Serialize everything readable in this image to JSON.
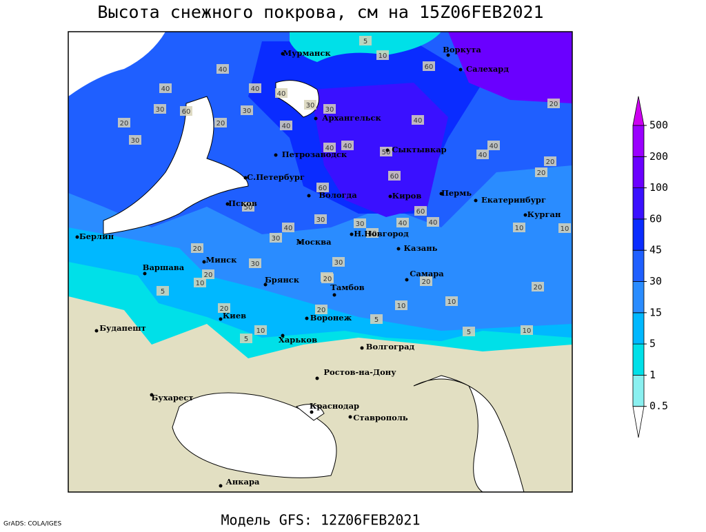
{
  "header": {
    "title": "Высота снежного покрова, см на 15Z06FEB2021"
  },
  "footer": {
    "model": "Модель GFS: 12Z06FEB2021",
    "credit": "GrADS: COLA/IGES"
  },
  "cities": [
    "Мурманск",
    "Архангельск",
    "Петрозаводск",
    "Сыктывкар",
    "Воркута",
    "Салехард",
    "С.Петербург",
    "Вологда",
    "Киров",
    "Пермь",
    "Екатеринбург",
    "Курган",
    "Псков",
    "Н.Новгород",
    "Москва",
    "Казань",
    "Берлин",
    "Варшава",
    "Минск",
    "Брянск",
    "Тамбов",
    "Самара",
    "Киев",
    "Воронеж",
    "Будапешт",
    "Харьков",
    "Волгоград",
    "Ростов-на-Дону",
    "Бухарест",
    "Краснодар",
    "Ставрополь",
    "Анкара"
  ],
  "contour_labels": [
    5,
    10,
    40,
    60,
    40,
    40,
    30,
    60,
    30,
    20,
    30,
    20,
    30,
    40,
    30,
    40,
    40,
    40,
    60,
    40,
    40,
    40,
    60,
    50,
    40,
    20,
    20,
    60,
    30,
    40,
    40,
    50,
    30,
    30,
    20,
    30,
    40,
    30,
    20,
    10,
    20,
    20,
    5,
    10,
    20,
    20,
    5,
    10,
    10,
    5,
    10,
    10,
    20,
    10,
    5,
    20,
    20
  ],
  "colorbar": {
    "levels": [
      0.5,
      1,
      5,
      15,
      30,
      45,
      60,
      100,
      200,
      500
    ],
    "colors": [
      "#ffffff",
      "#8af0f0",
      "#00e0e8",
      "#00b8ff",
      "#2a8cff",
      "#1f5fff",
      "#0a2cff",
      "#3a10ff",
      "#6a00ff",
      "#9a00ff",
      "#cc00f0"
    ]
  }
}
